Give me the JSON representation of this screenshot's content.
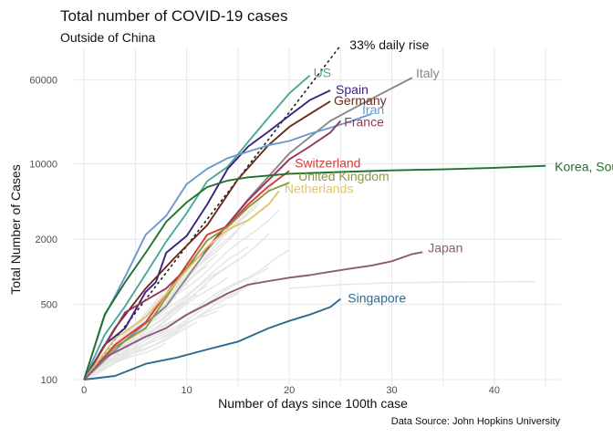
{
  "title": "Total number of COVID-19 cases",
  "subtitle": "Outside of China",
  "caption": "Data Source: John Hopkins University",
  "chart_data": {
    "type": "line",
    "xlabel": "Number of days since 100th case",
    "ylabel": "Total Number of Cases",
    "xlim": [
      -1,
      46.5
    ],
    "ylim": [
      100,
      120000
    ],
    "y_scale": "log",
    "grid": true,
    "legend": "none (direct labels)",
    "x_ticks": [
      0,
      10,
      20,
      30,
      40
    ],
    "y_ticks": [
      100,
      500,
      2000,
      10000,
      60000
    ],
    "y_tick_labels": [
      "100",
      "500",
      "2000",
      "10000",
      "60000"
    ],
    "reference_line": {
      "name": "33% daily rise",
      "color": "#222222",
      "x": [
        0,
        25
      ],
      "y": [
        100,
        125000
      ]
    },
    "series": [
      {
        "name": "US",
        "color": "#4aa89a",
        "x": [
          0,
          2,
          4,
          6,
          8,
          10,
          12,
          14,
          16,
          18,
          20,
          22
        ],
        "y": [
          100,
          260,
          480,
          950,
          1900,
          3500,
          6900,
          9400,
          16000,
          27000,
          45000,
          66000
        ]
      },
      {
        "name": "Spain",
        "color": "#3d2280",
        "x": [
          0,
          2,
          4,
          6,
          7,
          8,
          10,
          12,
          14,
          16,
          18,
          20,
          22,
          24
        ],
        "y": [
          100,
          210,
          300,
          650,
          800,
          1500,
          2150,
          4200,
          9000,
          14500,
          20000,
          28000,
          39000,
          48000
        ]
      },
      {
        "name": "Italy",
        "color": "#888888",
        "x": [
          0,
          4,
          8,
          12,
          16,
          20,
          24,
          28,
          32
        ],
        "y": [
          100,
          230,
          480,
          1600,
          4700,
          12500,
          25000,
          40000,
          63000
        ]
      },
      {
        "name": "Germany",
        "color": "#6a2a1e",
        "x": [
          0,
          3,
          6,
          9,
          12,
          15,
          18,
          20,
          22,
          24
        ],
        "y": [
          100,
          300,
          700,
          1400,
          2700,
          7200,
          15000,
          22000,
          29000,
          38000
        ]
      },
      {
        "name": "Iran",
        "color": "#6a99cc",
        "x": [
          0,
          2,
          4,
          6,
          8,
          10,
          12,
          14,
          16,
          18,
          20,
          22,
          24,
          26,
          28
        ],
        "y": [
          100,
          390,
          900,
          2200,
          3300,
          6500,
          9000,
          11300,
          13000,
          14900,
          16300,
          19000,
          21600,
          24800,
          29000
        ]
      },
      {
        "name": "France",
        "color": "#8e3a59",
        "x": [
          0,
          4,
          8,
          12,
          16,
          20,
          22,
          24,
          25
        ],
        "y": [
          100,
          420,
          700,
          1650,
          4600,
          11000,
          14500,
          19500,
          25000
        ]
      },
      {
        "name": "Switzerland",
        "color": "#d93a3a",
        "x": [
          0,
          3,
          6,
          9,
          12,
          14,
          16,
          18,
          20
        ],
        "y": [
          100,
          210,
          340,
          840,
          2200,
          2650,
          4200,
          6200,
          8600
        ]
      },
      {
        "name": "United Kingdom",
        "color": "#8a9a3e",
        "x": [
          0,
          3,
          6,
          9,
          12,
          14,
          16,
          18,
          20
        ],
        "y": [
          100,
          200,
          300,
          800,
          1950,
          2600,
          3950,
          5600,
          6700
        ]
      },
      {
        "name": "Netherlands",
        "color": "#e0c56a",
        "x": [
          0,
          3,
          6,
          9,
          12,
          14,
          16,
          18,
          19
        ],
        "y": [
          100,
          240,
          380,
          800,
          1700,
          2460,
          3000,
          4220,
          5600
        ]
      },
      {
        "name": "Korea, South",
        "color": "#207030",
        "x": [
          0,
          2,
          4,
          6,
          8,
          10,
          12,
          14,
          16,
          20,
          25,
          30,
          35,
          40,
          45
        ],
        "y": [
          100,
          400,
          800,
          1500,
          2900,
          4400,
          6100,
          7000,
          7500,
          8100,
          8400,
          8700,
          8900,
          9200,
          9600
        ]
      },
      {
        "name": "Japan",
        "color": "#8a5a7a",
        "x": [
          0,
          2,
          4,
          6,
          8,
          10,
          12,
          14,
          16,
          18,
          20,
          22,
          24,
          26,
          28,
          30,
          32,
          33
        ],
        "y": [
          100,
          160,
          200,
          250,
          300,
          400,
          500,
          630,
          760,
          820,
          880,
          930,
          1000,
          1070,
          1140,
          1250,
          1460,
          1520
        ]
      },
      {
        "name": "Singapore",
        "color": "#2d6a8e",
        "x": [
          0,
          3,
          6,
          9,
          12,
          15,
          18,
          20,
          22,
          24,
          25
        ],
        "y": [
          100,
          108,
          140,
          160,
          190,
          225,
          300,
          350,
          400,
          470,
          560
        ]
      }
    ]
  }
}
